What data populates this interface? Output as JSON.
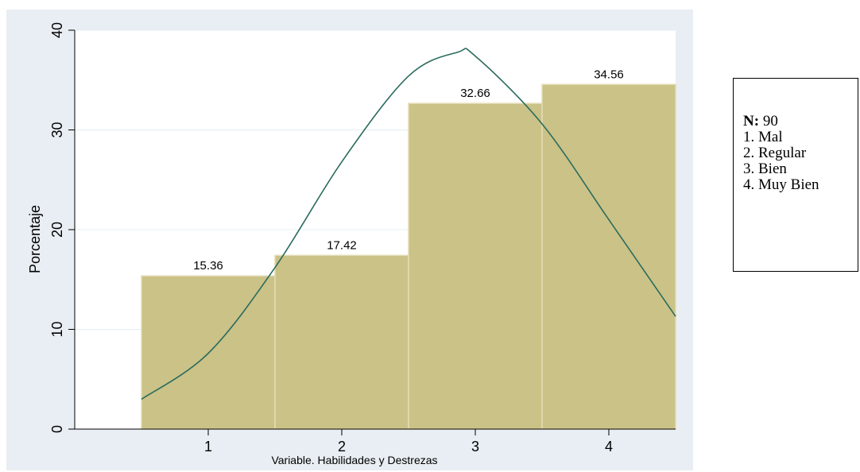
{
  "chart_data": {
    "type": "bar",
    "categories": [
      "1",
      "2",
      "3",
      "4"
    ],
    "values": [
      15.36,
      17.42,
      32.66,
      34.56
    ],
    "data_labels": [
      "15.36",
      "17.42",
      "32.66",
      "34.56"
    ],
    "xlabel": "Variable. Habilidades y Destrezas",
    "ylabel": "Porcentaje",
    "xlim": [
      0,
      4.5
    ],
    "ylim": [
      0,
      40
    ],
    "yticks": [
      "0",
      "10",
      "20",
      "30",
      "40"
    ],
    "grid": true,
    "overlay": {
      "type": "normal-curve",
      "x": [
        0.5,
        1.0,
        1.5,
        2.0,
        2.5,
        2.87,
        3.0,
        3.5,
        4.0,
        4.5
      ],
      "y": [
        3.0,
        7.6,
        16.2,
        26.8,
        35.4,
        37.8,
        37.4,
        30.6,
        21.0,
        11.3
      ]
    },
    "colors": {
      "bar": "#cbc287",
      "bar_edge": "#e3dcb4",
      "curve": "#2a6b5e",
      "background": "#e8eef3"
    }
  },
  "legend": {
    "n_label": "N:",
    "n_value": "90",
    "items": [
      "1. Mal",
      "2. Regular",
      "3. Bien",
      "4. Muy Bien"
    ]
  }
}
